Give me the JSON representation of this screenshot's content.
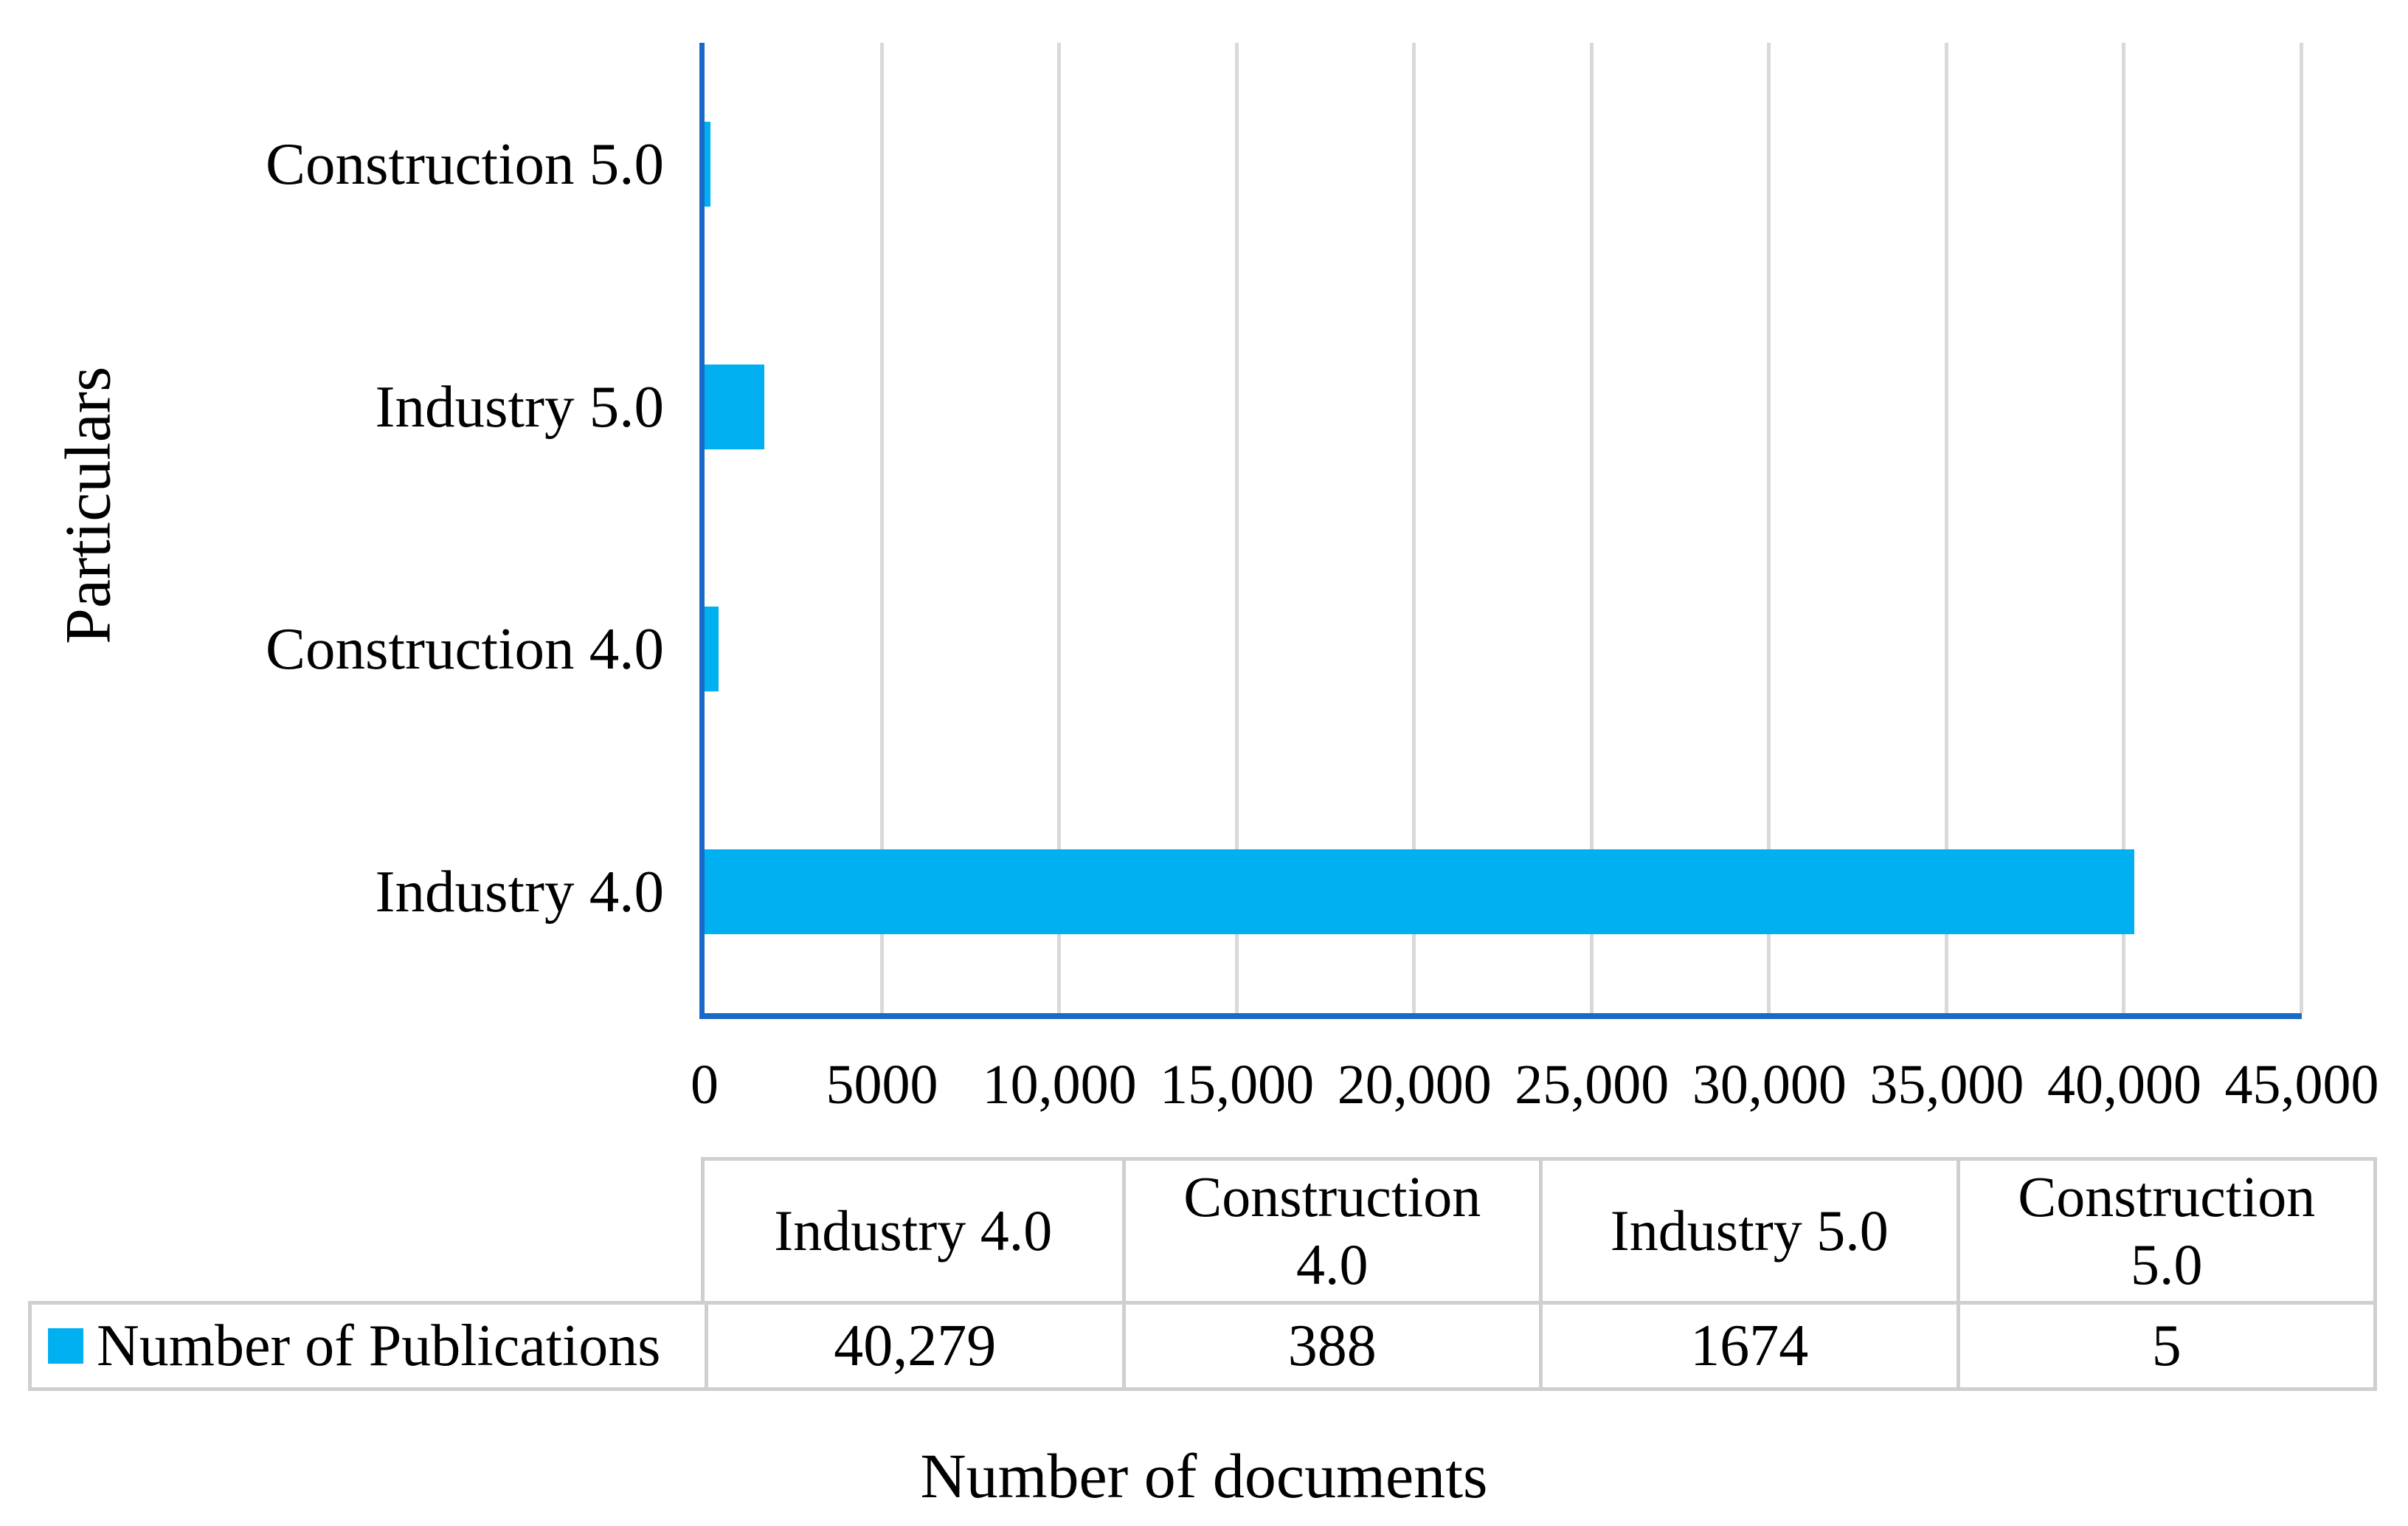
{
  "chart_data": {
    "type": "bar",
    "orientation": "horizontal",
    "series_name": "Number of Publications",
    "categories": [
      "Industry 4.0",
      "Construction 4.0",
      "Industry 5.0",
      "Construction 5.0"
    ],
    "values": [
      40279,
      388,
      1674,
      5
    ],
    "category_display_order_top_to_bottom": [
      "Construction 5.0",
      "Industry 5.0",
      "Construction 4.0",
      "Industry 4.0"
    ],
    "xlabel": "Number of documents",
    "ylabel": "Particulars",
    "xlim": [
      0,
      45000
    ],
    "xticks": [
      0,
      5000,
      10000,
      15000,
      20000,
      25000,
      30000,
      35000,
      40000,
      45000
    ],
    "tick_labels": [
      "0",
      "5000",
      "10,000",
      "15,000",
      "20,000",
      "25,000",
      "30,000",
      "35,000",
      "40,000",
      "45,000"
    ],
    "grid": "vertical-gridlines-on",
    "legend_position": "bottom-table",
    "bar_color": "#00B0F0",
    "axis_color": "#1A69C9",
    "gridline_color": "#D9D9D9"
  },
  "table": {
    "headers": [
      "Industry 4.0",
      "Construction 4.0",
      "Industry 5.0",
      "Construction 5.0"
    ],
    "series_label": "Number of Publications",
    "row_values": [
      "40,279",
      "388",
      "1674",
      "5"
    ],
    "border_color": "#CFCFCF"
  }
}
